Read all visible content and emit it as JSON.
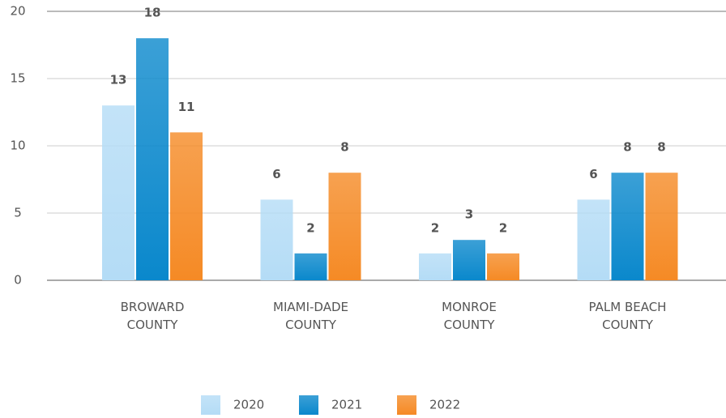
{
  "chart_data": {
    "type": "bar",
    "categories": [
      "BROWARD COUNTY",
      "MIAMI-DADE COUNTY",
      "MONROE COUNTY",
      "PALM BEACH COUNTY"
    ],
    "series": [
      {
        "name": "2020",
        "color": "#b4dcf6",
        "values": [
          13,
          6,
          2,
          6
        ]
      },
      {
        "name": "2021",
        "color": "#0a88cc",
        "values": [
          18,
          2,
          3,
          8
        ]
      },
      {
        "name": "2022",
        "color": "#f58a25",
        "values": [
          11,
          8,
          2,
          8
        ]
      }
    ],
    "ylim": [
      0,
      20
    ],
    "yticks": [
      0,
      5,
      10,
      15,
      20
    ],
    "grid": true
  }
}
